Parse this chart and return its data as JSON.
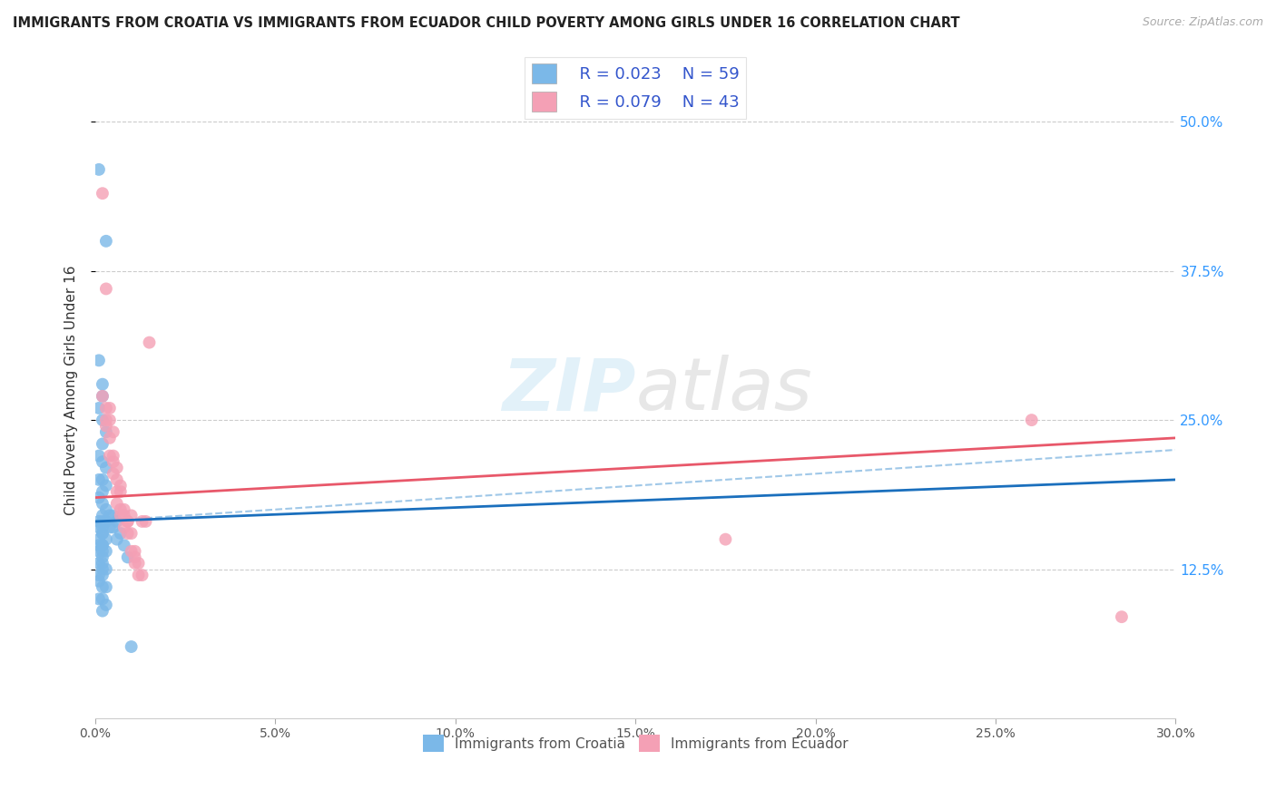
{
  "title": "IMMIGRANTS FROM CROATIA VS IMMIGRANTS FROM ECUADOR CHILD POVERTY AMONG GIRLS UNDER 16 CORRELATION CHART",
  "source": "Source: ZipAtlas.com",
  "ylabel": "Child Poverty Among Girls Under 16",
  "xlim": [
    0.0,
    0.3
  ],
  "ylim": [
    0.0,
    0.55
  ],
  "ytick_vals": [
    0.125,
    0.25,
    0.375,
    0.5
  ],
  "ytick_labels": [
    "12.5%",
    "25.0%",
    "37.5%",
    "50.0%"
  ],
  "xtick_vals": [
    0.0,
    0.05,
    0.1,
    0.15,
    0.2,
    0.25,
    0.3
  ],
  "xtick_labels": [
    "0.0%",
    "5.0%",
    "10.0%",
    "15.0%",
    "20.0%",
    "25.0%",
    "30.0%"
  ],
  "legend_r1": "R = 0.023",
  "legend_n1": "N = 59",
  "legend_r2": "R = 0.079",
  "legend_n2": "N = 43",
  "color_croatia": "#7bb8e8",
  "color_ecuador": "#f4a0b5",
  "color_line_croatia": "#1a6fbd",
  "color_line_ecuador": "#e8586a",
  "color_dashed": "#a0c8e8",
  "croatia_x": [
    0.001,
    0.003,
    0.001,
    0.002,
    0.002,
    0.001,
    0.002,
    0.003,
    0.002,
    0.001,
    0.002,
    0.003,
    0.002,
    0.001,
    0.003,
    0.002,
    0.001,
    0.002,
    0.003,
    0.002,
    0.001,
    0.002,
    0.003,
    0.002,
    0.001,
    0.002,
    0.002,
    0.001,
    0.003,
    0.002,
    0.001,
    0.002,
    0.003,
    0.002,
    0.001,
    0.002,
    0.001,
    0.002,
    0.003,
    0.002,
    0.001,
    0.002,
    0.001,
    0.002,
    0.003,
    0.002,
    0.001,
    0.003,
    0.002,
    0.004,
    0.005,
    0.006,
    0.004,
    0.005,
    0.007,
    0.006,
    0.008,
    0.009,
    0.01
  ],
  "croatia_y": [
    0.46,
    0.4,
    0.3,
    0.28,
    0.27,
    0.26,
    0.25,
    0.24,
    0.23,
    0.22,
    0.215,
    0.21,
    0.2,
    0.2,
    0.195,
    0.19,
    0.185,
    0.18,
    0.175,
    0.17,
    0.165,
    0.165,
    0.165,
    0.16,
    0.16,
    0.155,
    0.155,
    0.15,
    0.15,
    0.145,
    0.145,
    0.145,
    0.14,
    0.14,
    0.14,
    0.135,
    0.13,
    0.13,
    0.125,
    0.125,
    0.12,
    0.12,
    0.115,
    0.11,
    0.11,
    0.1,
    0.1,
    0.095,
    0.09,
    0.17,
    0.17,
    0.165,
    0.16,
    0.16,
    0.155,
    0.15,
    0.145,
    0.135,
    0.06
  ],
  "ecuador_x": [
    0.002,
    0.003,
    0.002,
    0.003,
    0.004,
    0.003,
    0.004,
    0.003,
    0.005,
    0.004,
    0.005,
    0.004,
    0.005,
    0.006,
    0.005,
    0.006,
    0.007,
    0.006,
    0.007,
    0.006,
    0.007,
    0.008,
    0.007,
    0.008,
    0.009,
    0.008,
    0.009,
    0.01,
    0.009,
    0.01,
    0.011,
    0.01,
    0.011,
    0.012,
    0.011,
    0.012,
    0.013,
    0.014,
    0.013,
    0.015,
    0.26,
    0.285,
    0.175
  ],
  "ecuador_y": [
    0.44,
    0.36,
    0.27,
    0.26,
    0.25,
    0.245,
    0.26,
    0.25,
    0.24,
    0.235,
    0.22,
    0.22,
    0.215,
    0.21,
    0.205,
    0.2,
    0.195,
    0.19,
    0.19,
    0.18,
    0.175,
    0.175,
    0.17,
    0.17,
    0.165,
    0.16,
    0.155,
    0.17,
    0.165,
    0.155,
    0.14,
    0.14,
    0.135,
    0.13,
    0.13,
    0.12,
    0.12,
    0.165,
    0.165,
    0.315,
    0.25,
    0.085,
    0.15
  ]
}
